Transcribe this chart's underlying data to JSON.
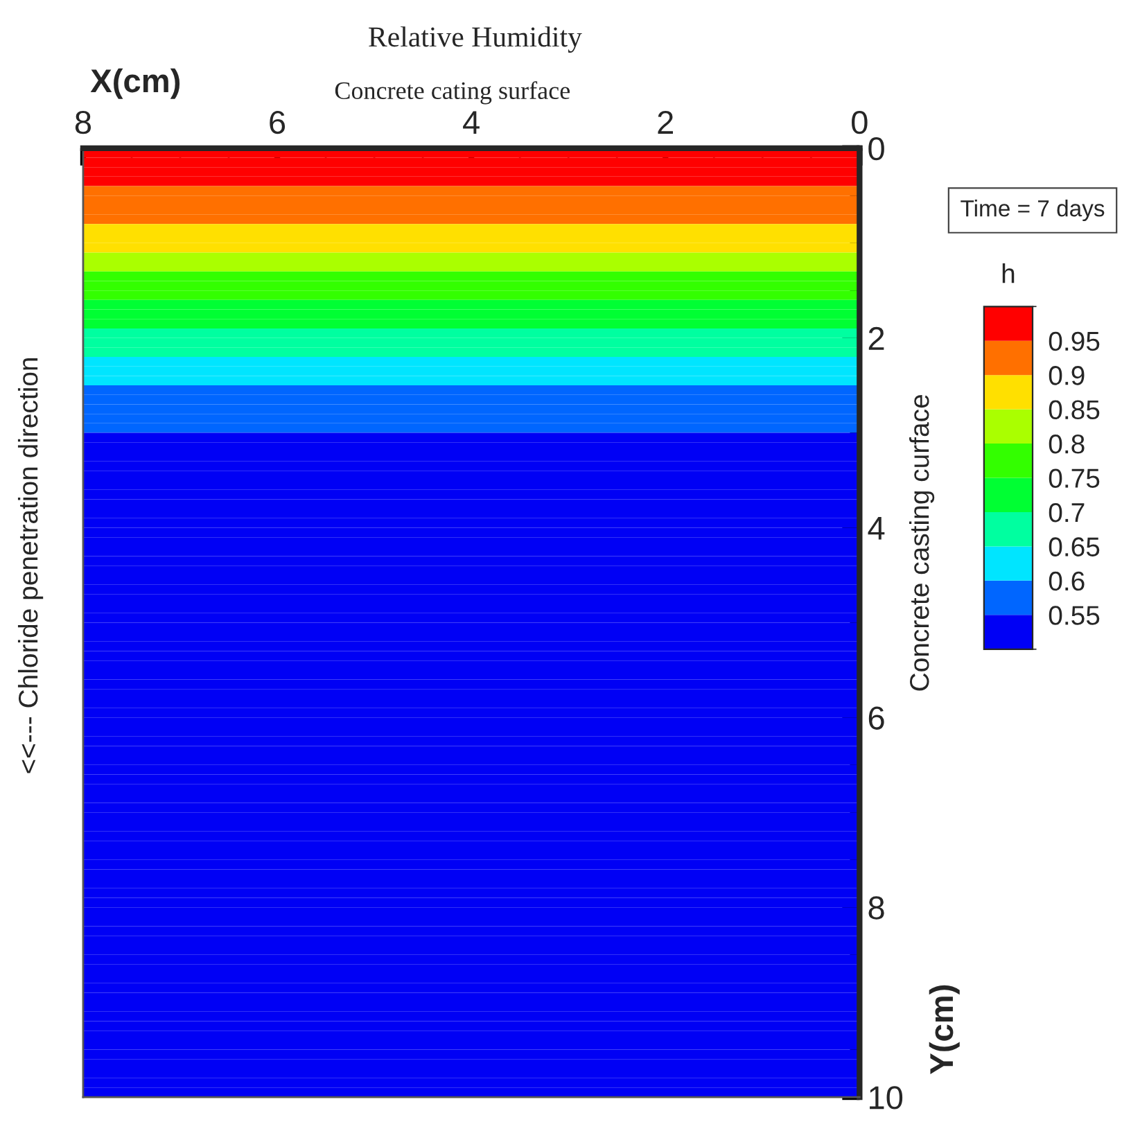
{
  "chart_data": {
    "type": "heatmap",
    "title": "Relative Humidity",
    "subtitle": "Concrete cating surface",
    "xlabel": "X(cm)",
    "ylabel": "Y(cm)",
    "y2label": "Concrete casting curface",
    "clabel": "h",
    "annotations": [
      "<<--- Chloride penetration direction",
      "Time = 7 days"
    ],
    "xlim": [
      8,
      0
    ],
    "ylim": [
      10,
      0
    ],
    "xticks": [
      8,
      {
        "value": 7.5,
        "label": null
      },
      {
        "value": 7,
        "label": null
      },
      {
        "value": 6.5,
        "label": null
      },
      6,
      {
        "value": 5.5,
        "label": null
      },
      {
        "value": 5,
        "label": null
      },
      {
        "value": 4.5,
        "label": null
      },
      4,
      {
        "value": 3.5,
        "label": null
      },
      {
        "value": 3,
        "label": null
      },
      {
        "value": 2.5,
        "label": null
      },
      2,
      {
        "value": 1.5,
        "label": null
      },
      {
        "value": 1,
        "label": null
      },
      {
        "value": 0.5,
        "label": null
      },
      0
    ],
    "yticks": [
      0,
      {
        "value": 0.5,
        "label": null
      },
      {
        "value": 1,
        "label": null
      },
      {
        "value": 1.5,
        "label": null
      },
      2,
      {
        "value": 2.5,
        "label": null
      },
      {
        "value": 3,
        "label": null
      },
      {
        "value": 3.5,
        "label": null
      },
      4,
      {
        "value": 4.5,
        "label": null
      },
      {
        "value": 5,
        "label": null
      },
      {
        "value": 5.5,
        "label": null
      },
      6,
      {
        "value": 6.5,
        "label": null
      },
      {
        "value": 7,
        "label": null
      },
      {
        "value": 7.5,
        "label": null
      },
      8,
      {
        "value": 8.5,
        "label": null
      },
      {
        "value": 9,
        "label": null
      },
      {
        "value": 9.5,
        "label": null
      },
      10
    ],
    "clim": [
      0.5,
      1.0
    ],
    "cticks": [
      0.55,
      0.6,
      0.65,
      0.7,
      0.75,
      0.8,
      0.85,
      0.9,
      0.95
    ],
    "colors": [
      "#0000f5",
      "#0066ff",
      "#00e5ff",
      "#00ffa0",
      "#00ff33",
      "#33ff00",
      "#aaff00",
      "#ffe000",
      "#ff7000",
      "#ff0000"
    ],
    "grid": false,
    "cells": [
      [
        0.975
      ],
      [
        0.975
      ],
      [
        0.975
      ],
      [
        0.975
      ],
      [
        0.925
      ],
      [
        0.925
      ],
      [
        0.925
      ],
      [
        0.925
      ],
      [
        0.875
      ],
      [
        0.875
      ],
      [
        0.875
      ],
      [
        0.825
      ],
      [
        0.825
      ],
      [
        0.775
      ],
      [
        0.775
      ],
      [
        0.775
      ],
      [
        0.725
      ],
      [
        0.725
      ],
      [
        0.725
      ],
      [
        0.675
      ],
      [
        0.675
      ],
      [
        0.675
      ],
      [
        0.625
      ],
      [
        0.625
      ],
      [
        0.625
      ],
      [
        0.575
      ],
      [
        0.575
      ],
      [
        0.575
      ],
      [
        0.575
      ],
      [
        0.575
      ],
      [
        0.525
      ],
      [
        0.525
      ],
      [
        0.525
      ],
      [
        0.525
      ],
      [
        0.525
      ],
      [
        0.525
      ],
      [
        0.525
      ],
      [
        0.525
      ],
      [
        0.525
      ],
      [
        0.525
      ],
      [
        0.525
      ],
      [
        0.525
      ],
      [
        0.525
      ],
      [
        0.525
      ],
      [
        0.525
      ],
      [
        0.525
      ],
      [
        0.525
      ],
      [
        0.525
      ],
      [
        0.525
      ],
      [
        0.525
      ],
      [
        0.525
      ],
      [
        0.525
      ],
      [
        0.525
      ],
      [
        0.525
      ],
      [
        0.525
      ],
      [
        0.525
      ],
      [
        0.525
      ],
      [
        0.525
      ],
      [
        0.525
      ],
      [
        0.525
      ],
      [
        0.525
      ],
      [
        0.525
      ],
      [
        0.525
      ],
      [
        0.525
      ],
      [
        0.525
      ],
      [
        0.525
      ],
      [
        0.525
      ],
      [
        0.525
      ],
      [
        0.525
      ],
      [
        0.525
      ],
      [
        0.525
      ],
      [
        0.525
      ],
      [
        0.525
      ],
      [
        0.525
      ],
      [
        0.525
      ],
      [
        0.525
      ],
      [
        0.525
      ],
      [
        0.525
      ],
      [
        0.525
      ],
      [
        0.525
      ],
      [
        0.525
      ],
      [
        0.525
      ],
      [
        0.525
      ],
      [
        0.525
      ],
      [
        0.525
      ],
      [
        0.525
      ],
      [
        0.525
      ],
      [
        0.525
      ],
      [
        0.525
      ],
      [
        0.525
      ],
      [
        0.525
      ],
      [
        0.525
      ],
      [
        0.525
      ],
      [
        0.525
      ],
      [
        0.525
      ],
      [
        0.525
      ],
      [
        0.525
      ],
      [
        0.525
      ],
      [
        0.525
      ],
      [
        0.525
      ]
    ]
  }
}
